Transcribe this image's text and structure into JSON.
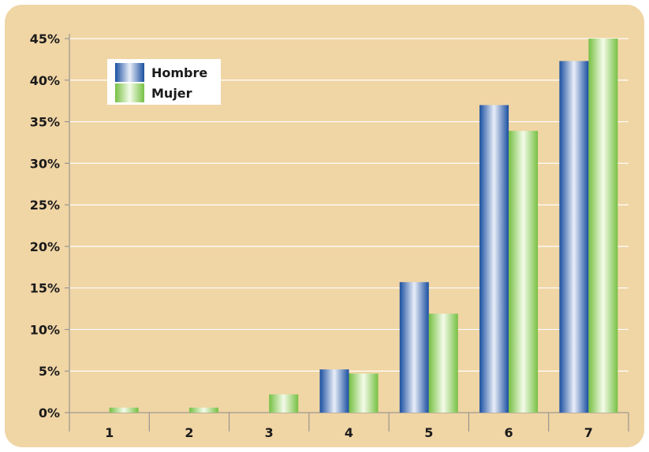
{
  "chart_data": {
    "type": "bar",
    "categories": [
      "1",
      "2",
      "3",
      "4",
      "5",
      "6",
      "7"
    ],
    "series": [
      {
        "name": "Hombre",
        "values": [
          0,
          0,
          0,
          5.2,
          15.7,
          37.0,
          42.3
        ]
      },
      {
        "name": "Mujer",
        "values": [
          0.6,
          0.6,
          2.2,
          4.7,
          11.9,
          33.9,
          45.0
        ]
      }
    ],
    "ylim": [
      0,
      45
    ],
    "yticks": [
      0,
      5,
      10,
      15,
      20,
      25,
      30,
      35,
      40,
      45
    ],
    "ytick_suffix": "%",
    "grid": true,
    "legend_position": "top-left",
    "colors": {
      "background": "#f0d5a5",
      "grid": "#ffffff",
      "axis": "#8a8a8a",
      "hombre_dark": "#1a4fa0",
      "hombre_light": "#e9eef8",
      "mujer_dark": "#76c043",
      "mujer_light": "#f4fbe9"
    }
  }
}
